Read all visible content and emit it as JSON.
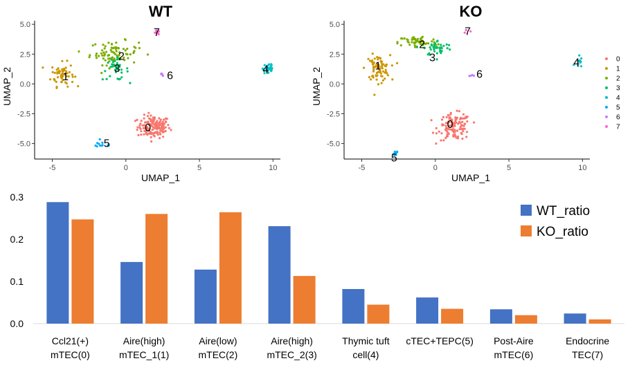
{
  "chart_data": [
    {
      "type": "scatter",
      "title": "WT",
      "xlabel": "UMAP_1",
      "ylabel": "UMAP_2",
      "xticks": [
        "-5",
        "0",
        "5",
        "10"
      ],
      "yticks": [
        "-5.0",
        "-2.5",
        "0.0",
        "2.5",
        "5.0"
      ],
      "xlim": [
        -6.2,
        10.5
      ],
      "ylim": [
        -6.3,
        5.3
      ],
      "clusters": [
        {
          "label": "0",
          "color": "#F8766D",
          "label_pos": [
            1.5,
            -3.7
          ],
          "center": [
            1.9,
            -3.6
          ],
          "spread": [
            1.0,
            0.85
          ],
          "n": 150
        },
        {
          "label": "1",
          "color": "#CD9600",
          "label_pos": [
            -4.1,
            0.6
          ],
          "center": [
            -4.3,
            0.8
          ],
          "spread": [
            0.7,
            0.9
          ],
          "n": 60
        },
        {
          "label": "2",
          "color": "#7CAE00",
          "label_pos": [
            -0.3,
            2.3
          ],
          "center": [
            -0.8,
            2.6
          ],
          "spread": [
            1.5,
            0.9
          ],
          "n": 85
        },
        {
          "label": "3",
          "color": "#00BE67",
          "label_pos": [
            -0.6,
            1.3
          ],
          "center": [
            -0.7,
            1.2
          ],
          "spread": [
            0.8,
            0.8
          ],
          "n": 35
        },
        {
          "label": "4",
          "color": "#00BFC4",
          "label_pos": [
            9.5,
            1.2
          ],
          "center": [
            9.7,
            1.3
          ],
          "spread": [
            0.35,
            0.6
          ],
          "n": 30
        },
        {
          "label": "5",
          "color": "#00A9FF",
          "label_pos": [
            -1.3,
            -5.0
          ],
          "center": [
            -1.6,
            -5.1
          ],
          "spread": [
            0.7,
            0.25
          ],
          "n": 12
        },
        {
          "label": "6",
          "color": "#C77CFF",
          "label_pos": [
            3.0,
            0.7
          ],
          "center": [
            2.5,
            0.8
          ],
          "spread": [
            0.25,
            0.15
          ],
          "n": 6
        },
        {
          "label": "7",
          "color": "#FF61CC",
          "label_pos": [
            2.1,
            4.3
          ],
          "center": [
            2.1,
            4.3
          ],
          "spread": [
            0.25,
            0.15
          ],
          "n": 6
        }
      ]
    },
    {
      "type": "scatter",
      "title": "KO",
      "xlabel": "UMAP_1",
      "ylabel": "UMAP_2",
      "xticks": [
        "-5",
        "0",
        "5",
        "10"
      ],
      "yticks": [
        "-5.0",
        "-2.5",
        "0.0",
        "2.5",
        "5.0"
      ],
      "xlim": [
        -6.2,
        10.5
      ],
      "ylim": [
        -6.3,
        5.3
      ],
      "clusters": [
        {
          "label": "0",
          "color": "#F8766D",
          "label_pos": [
            1.0,
            -3.4
          ],
          "center": [
            1.3,
            -3.6
          ],
          "spread": [
            1.0,
            1.0
          ],
          "n": 120
        },
        {
          "label": "1",
          "color": "#CD9600",
          "label_pos": [
            -3.9,
            1.5
          ],
          "center": [
            -3.9,
            1.3
          ],
          "spread": [
            0.75,
            1.0
          ],
          "n": 80
        },
        {
          "label": "2",
          "color": "#7CAE00",
          "label_pos": [
            -0.9,
            3.3
          ],
          "center": [
            -1.2,
            3.5
          ],
          "spread": [
            1.2,
            0.5
          ],
          "n": 60
        },
        {
          "label": "3",
          "color": "#00BE67",
          "label_pos": [
            -0.2,
            2.2
          ],
          "center": [
            0.2,
            3.0
          ],
          "spread": [
            0.9,
            0.6
          ],
          "n": 40
        },
        {
          "label": "4",
          "color": "#00BFC4",
          "label_pos": [
            9.6,
            1.8
          ],
          "center": [
            9.7,
            1.8
          ],
          "spread": [
            0.25,
            0.6
          ],
          "n": 10
        },
        {
          "label": "5",
          "color": "#00A9FF",
          "label_pos": [
            -2.8,
            -6.2
          ],
          "center": [
            -2.7,
            -5.8
          ],
          "spread": [
            0.2,
            0.25
          ],
          "n": 8
        },
        {
          "label": "6",
          "color": "#C77CFF",
          "label_pos": [
            3.0,
            0.8
          ],
          "center": [
            2.5,
            0.8
          ],
          "spread": [
            0.2,
            0.15
          ],
          "n": 4
        },
        {
          "label": "7",
          "color": "#FF61CC",
          "label_pos": [
            2.2,
            4.4
          ],
          "center": [
            2.2,
            4.4
          ],
          "spread": [
            0.15,
            0.15
          ],
          "n": 3
        }
      ],
      "legend": [
        "0",
        "1",
        "2",
        "3",
        "4",
        "5",
        "6",
        "7"
      ]
    },
    {
      "type": "bar",
      "categories": [
        [
          "Ccl21(+)",
          "mTEC(0)"
        ],
        [
          "Aire(high)",
          "mTEC_1(1)"
        ],
        [
          "Aire(low)",
          "mTEC(2)"
        ],
        [
          "Aire(high)",
          "mTEC_2(3)"
        ],
        [
          "Thymic tuft",
          "cell(4)"
        ],
        [
          "cTEC+TEPC(5)"
        ],
        [
          "Post-Aire",
          "mTEC(6)"
        ],
        [
          "Endocrine",
          "TEC(7)"
        ]
      ],
      "series": [
        {
          "name": "WT_ratio",
          "color": "#4472C4",
          "values": [
            0.288,
            0.146,
            0.128,
            0.231,
            0.082,
            0.062,
            0.034,
            0.024
          ]
        },
        {
          "name": "KO_ratio",
          "color": "#ED7D31",
          "values": [
            0.247,
            0.26,
            0.264,
            0.113,
            0.045,
            0.035,
            0.02,
            0.01
          ]
        }
      ],
      "yticks": [
        "0.0",
        "0.1",
        "0.2",
        "0.3"
      ],
      "ylim": [
        0,
        0.3
      ],
      "legend_position": "top-right"
    }
  ]
}
